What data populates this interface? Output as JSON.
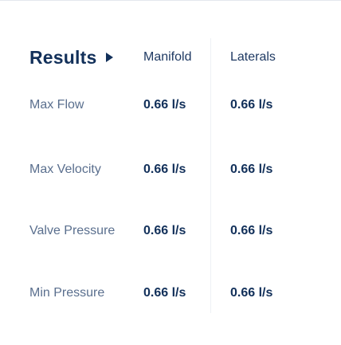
{
  "results": {
    "title": "Results",
    "columns": [
      "Manifold",
      "Laterals"
    ],
    "rows": [
      {
        "label": "Max Flow",
        "manifold": "0.66 l/s",
        "laterals": "0.66 l/s"
      },
      {
        "label": "Max Velocity",
        "manifold": "0.66 l/s",
        "laterals": "0.66 l/s"
      },
      {
        "label": "Valve Pressure",
        "manifold": "0.66 l/s",
        "laterals": "0.66 l/s"
      },
      {
        "label": "Min Pressure",
        "manifold": "0.66 l/s",
        "laterals": "0.66 l/s"
      }
    ]
  },
  "icons": {
    "expand": "triangle-right-icon"
  },
  "colors": {
    "primary": "#12305a",
    "label": "#5a6f8e",
    "divider": "#eef1f5"
  }
}
